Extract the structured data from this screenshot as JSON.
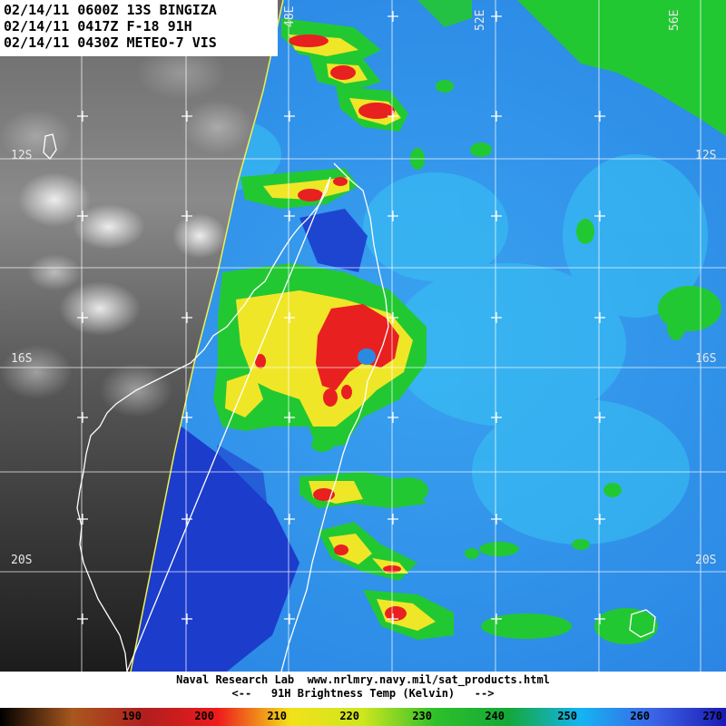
{
  "header": {
    "line1": "02/14/11 0600Z 13S BINGIZA",
    "line2": "02/14/11 0417Z F-18 91H",
    "line3": "02/14/11 0430Z METEO-7 VIS"
  },
  "grid_labels": {
    "lat_12s": "12S",
    "lat_16s": "16S",
    "lat_20s": "20S",
    "lon_48e": "48E",
    "lon_52e": "52E",
    "lon_56e": "56E"
  },
  "footer": {
    "credit": "Naval Research Lab  www.nrlmry.navy.mil/sat_products.html",
    "legend_title": "<--   91H Brightness Temp (Kelvin)   -->"
  },
  "colorbar": {
    "ticks": [
      {
        "label": "190",
        "color": "#a8581e"
      },
      {
        "label": "200",
        "color": "#b01e1e"
      },
      {
        "label": "210",
        "color": "#ee1c1c"
      },
      {
        "label": "220",
        "color": "#f2e11a"
      },
      {
        "label": "230",
        "color": "#cde61e"
      },
      {
        "label": "240",
        "color": "#2ec02a"
      },
      {
        "label": "250",
        "color": "#14a838"
      },
      {
        "label": "260",
        "color": "#14b4f2"
      },
      {
        "label": "270",
        "color": "#3c64e6"
      }
    ],
    "left_color": "#000000",
    "right_color": "#1a1ab4"
  },
  "map_colors": {
    "ocean_mid": "#2a8ae0",
    "ocean_light": "#3aa6f0",
    "ocean_deep": "#1c3cc8",
    "land_green": "#22c832",
    "rain_yellow": "#f0e628",
    "rain_red": "#e82020",
    "vis_dark": "#2a2a2a",
    "vis_light": "#b8b8b8",
    "coast": "#ffffff",
    "swath_edge": "#f0f050",
    "grid": "#ffffff"
  },
  "storm_name": "BINGIZA"
}
